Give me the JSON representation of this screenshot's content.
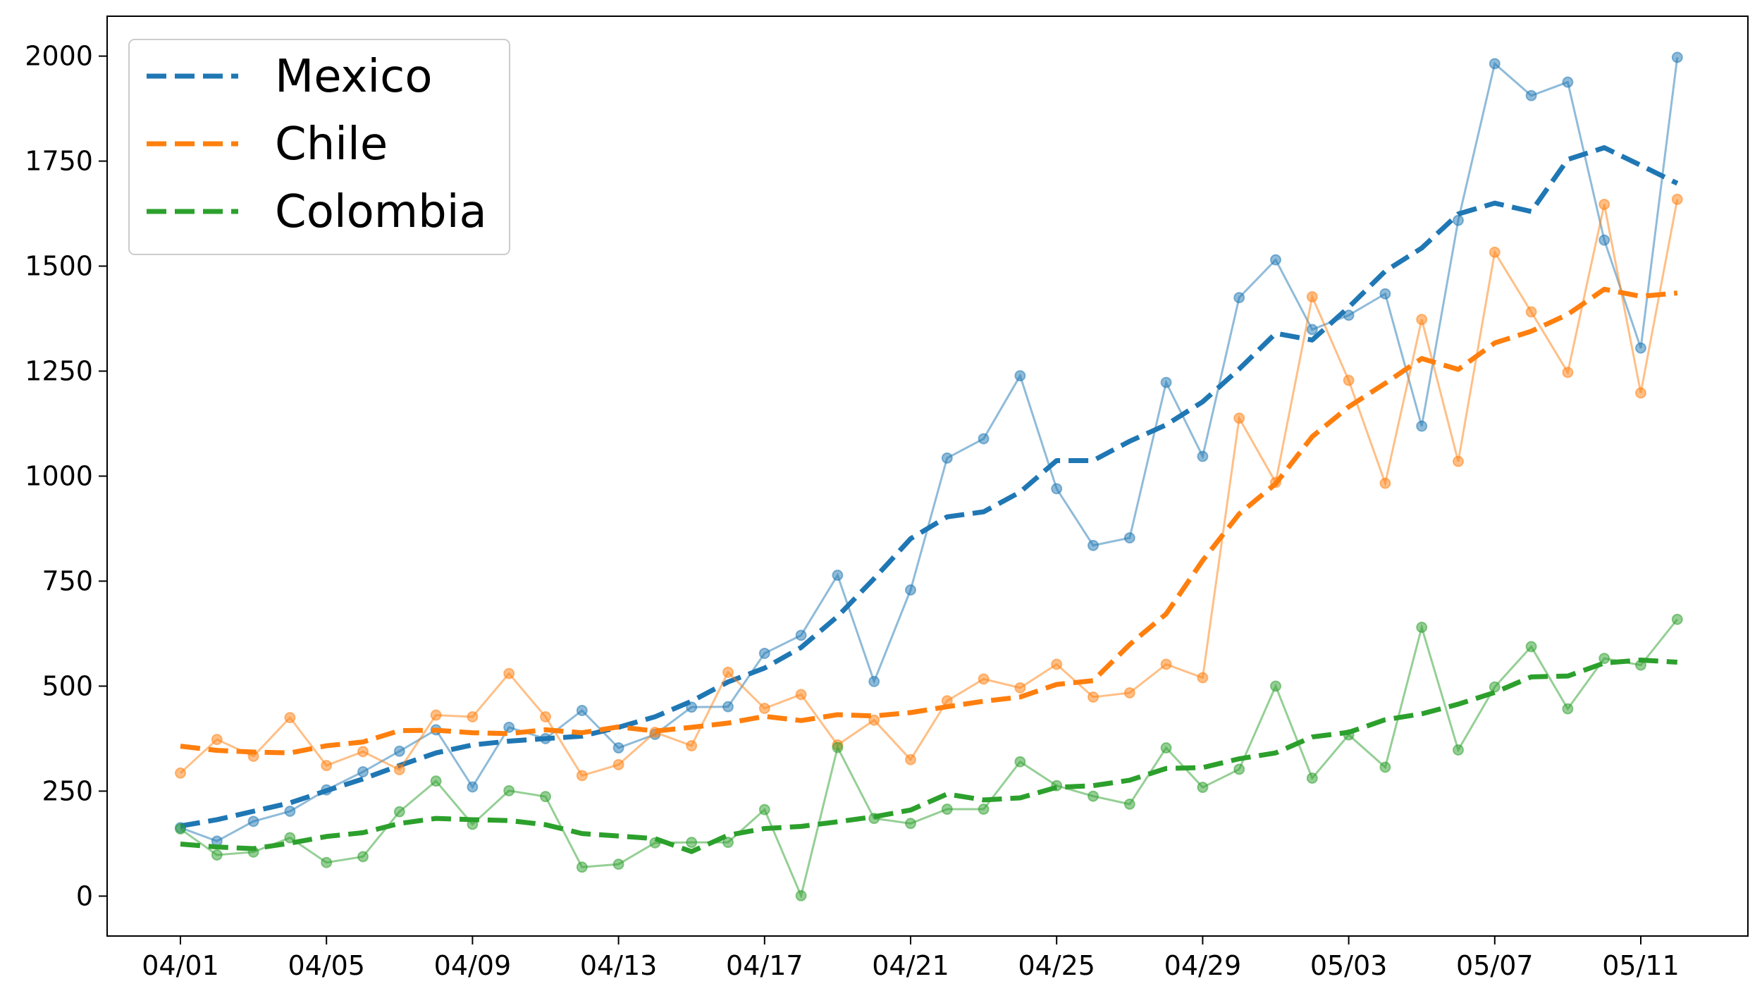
{
  "chart_data": {
    "type": "line",
    "title": "",
    "xlabel": "",
    "ylabel": "",
    "x": [
      "04/01",
      "04/02",
      "04/03",
      "04/04",
      "04/05",
      "04/06",
      "04/07",
      "04/08",
      "04/09",
      "04/10",
      "04/11",
      "04/12",
      "04/13",
      "04/14",
      "04/15",
      "04/16",
      "04/17",
      "04/18",
      "04/19",
      "04/20",
      "04/21",
      "04/22",
      "04/23",
      "04/24",
      "04/25",
      "04/26",
      "04/27",
      "04/28",
      "04/29",
      "04/30",
      "05/01",
      "05/02",
      "05/03",
      "05/04",
      "05/05",
      "05/06",
      "05/07",
      "05/08",
      "05/09",
      "05/10",
      "05/11",
      "05/12"
    ],
    "xticks": [
      "04/01",
      "04/05",
      "04/09",
      "04/13",
      "04/17",
      "04/21",
      "04/25",
      "04/29",
      "05/03",
      "05/07",
      "05/11"
    ],
    "yticks": [
      0,
      250,
      500,
      750,
      1000,
      1250,
      1500,
      1750,
      2000
    ],
    "ylim": [
      -95,
      2095
    ],
    "grid": false,
    "legend_position": "top-left",
    "series": [
      {
        "name": "Mexico",
        "color": "#1f77b4",
        "daily": [
          163,
          131,
          178,
          202,
          253,
          296,
          345,
          396,
          260,
          402,
          375,
          442,
          353,
          385,
          450,
          451,
          578,
          621,
          764,
          511,
          729,
          1043,
          1089,
          1239,
          970,
          835,
          853,
          1223,
          1047,
          1425,
          1515,
          1349,
          1383,
          1434,
          1119,
          1609,
          1982,
          1906,
          1938,
          1562,
          1305,
          1997
        ],
        "rolling": [
          167,
          182,
          202,
          222,
          251,
          279,
          311,
          341,
          360,
          369,
          375,
          381,
          402,
          427,
          464,
          510,
          543,
          592,
          666,
          756,
          851,
          903,
          915,
          962,
          1037,
          1037,
          1083,
          1122,
          1177,
          1255,
          1340,
          1324,
          1402,
          1488,
          1543,
          1624,
          1650,
          1630,
          1754,
          1782,
          1740,
          1697
        ]
      },
      {
        "name": "Chile",
        "color": "#ff7f0e",
        "daily": [
          293,
          373,
          333,
          425,
          311,
          344,
          301,
          431,
          427,
          530,
          427,
          287,
          313,
          390,
          358,
          533,
          447,
          480,
          360,
          419,
          325,
          465,
          517,
          496,
          552,
          474,
          484,
          552,
          520,
          1138,
          985,
          1427,
          1228,
          983,
          1373,
          1035,
          1533,
          1391,
          1247,
          1647,
          1198,
          1659
        ],
        "rolling": [
          357,
          347,
          343,
          341,
          358,
          367,
          394,
          395,
          389,
          387,
          396,
          389,
          403,
          393,
          402,
          412,
          428,
          418,
          432,
          429,
          437,
          451,
          464,
          474,
          504,
          513,
          599,
          672,
          799,
          910,
          982,
          1094,
          1165,
          1221,
          1280,
          1254,
          1317,
          1345,
          1385,
          1445,
          1428,
          1436
        ]
      },
      {
        "name": "Colombia",
        "color": "#2ca02c",
        "daily": [
          160,
          98,
          105,
          139,
          80,
          94,
          201,
          274,
          171,
          251,
          237,
          69,
          76,
          127,
          128,
          128,
          206,
          1,
          354,
          185,
          173,
          207,
          207,
          320,
          263,
          238,
          219,
          353,
          259,
          302,
          500,
          281,
          384,
          307,
          640,
          348,
          498,
          594,
          446,
          566,
          550,
          659
        ],
        "rolling": [
          124,
          117,
          113,
          126,
          142,
          151,
          173,
          185,
          182,
          180,
          170,
          149,
          143,
          137,
          106,
          145,
          161,
          166,
          177,
          189,
          205,
          243,
          229,
          234,
          259,
          263,
          276,
          304,
          306,
          327,
          341,
          379,
          390,
          420,
          434,
          457,
          485,
          522,
          524,
          555,
          562,
          557
        ]
      }
    ]
  }
}
